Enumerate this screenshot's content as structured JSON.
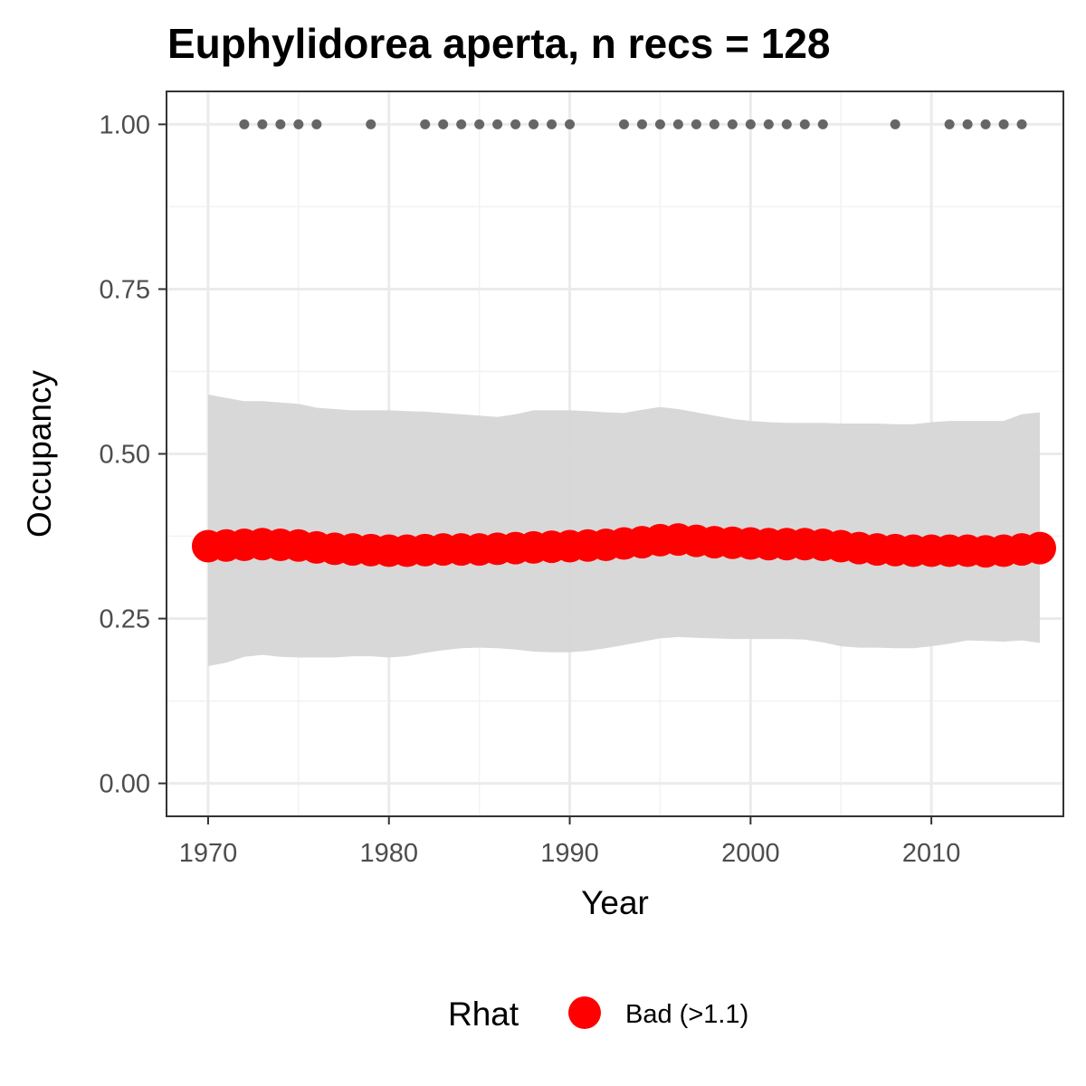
{
  "chart_data": {
    "type": "scatter",
    "title": "Euphylidorea aperta, n recs = 128",
    "xlabel": "Year",
    "ylabel": "Occupancy",
    "xlim": [
      1967.7,
      2017.3
    ],
    "ylim": [
      -0.05,
      1.05
    ],
    "x_ticks": [
      1970,
      1980,
      1990,
      2000,
      2010
    ],
    "y_ticks": [
      0.0,
      0.25,
      0.5,
      0.75,
      1.0
    ],
    "y_tick_labels": [
      "0.00",
      "0.25",
      "0.50",
      "0.75",
      "1.00"
    ],
    "grid": true,
    "legend": {
      "title": "Rhat",
      "position": "bottom",
      "entries": [
        {
          "label": "Bad (>1.1)",
          "color": "#ff0000"
        }
      ]
    },
    "colors": {
      "estimate": "#ff0000",
      "ribbon": "#d6d6d6",
      "records": "#666666"
    },
    "series": [
      {
        "name": "Bad (>1.1)",
        "kind": "points",
        "x": [
          1970,
          1971,
          1972,
          1973,
          1974,
          1975,
          1976,
          1977,
          1978,
          1979,
          1980,
          1981,
          1982,
          1983,
          1984,
          1985,
          1986,
          1987,
          1988,
          1989,
          1990,
          1991,
          1992,
          1993,
          1994,
          1995,
          1996,
          1997,
          1998,
          1999,
          2000,
          2001,
          2002,
          2003,
          2004,
          2005,
          2006,
          2007,
          2008,
          2009,
          2010,
          2011,
          2012,
          2013,
          2014,
          2015,
          2016
        ],
        "y": [
          0.36,
          0.361,
          0.362,
          0.363,
          0.362,
          0.361,
          0.358,
          0.356,
          0.355,
          0.354,
          0.353,
          0.353,
          0.354,
          0.355,
          0.355,
          0.355,
          0.356,
          0.357,
          0.358,
          0.359,
          0.36,
          0.361,
          0.362,
          0.364,
          0.366,
          0.369,
          0.37,
          0.368,
          0.366,
          0.365,
          0.364,
          0.363,
          0.363,
          0.363,
          0.362,
          0.36,
          0.357,
          0.355,
          0.354,
          0.353,
          0.353,
          0.353,
          0.353,
          0.352,
          0.353,
          0.355,
          0.357
        ]
      },
      {
        "name": "",
        "kind": "ribbon",
        "x": [
          1970,
          1971,
          1972,
          1973,
          1974,
          1975,
          1976,
          1977,
          1978,
          1979,
          1980,
          1981,
          1982,
          1983,
          1984,
          1985,
          1986,
          1987,
          1988,
          1989,
          1990,
          1991,
          1992,
          1993,
          1994,
          1995,
          1996,
          1997,
          1998,
          1999,
          2000,
          2001,
          2002,
          2003,
          2004,
          2005,
          2006,
          2007,
          2008,
          2009,
          2010,
          2011,
          2012,
          2013,
          2014,
          2015,
          2016
        ],
        "lower": [
          0.178,
          0.183,
          0.192,
          0.195,
          0.192,
          0.191,
          0.191,
          0.191,
          0.193,
          0.193,
          0.191,
          0.193,
          0.198,
          0.202,
          0.205,
          0.206,
          0.205,
          0.203,
          0.2,
          0.199,
          0.199,
          0.201,
          0.205,
          0.21,
          0.215,
          0.22,
          0.222,
          0.221,
          0.22,
          0.219,
          0.219,
          0.219,
          0.219,
          0.218,
          0.214,
          0.208,
          0.206,
          0.206,
          0.205,
          0.205,
          0.208,
          0.212,
          0.217,
          0.216,
          0.215,
          0.217,
          0.213
        ],
        "upper": [
          0.59,
          0.585,
          0.58,
          0.58,
          0.578,
          0.576,
          0.57,
          0.568,
          0.566,
          0.566,
          0.566,
          0.565,
          0.564,
          0.562,
          0.56,
          0.558,
          0.556,
          0.56,
          0.566,
          0.566,
          0.566,
          0.565,
          0.563,
          0.562,
          0.567,
          0.571,
          0.568,
          0.563,
          0.558,
          0.553,
          0.55,
          0.548,
          0.547,
          0.547,
          0.547,
          0.546,
          0.546,
          0.546,
          0.545,
          0.545,
          0.548,
          0.55,
          0.55,
          0.55,
          0.55,
          0.56,
          0.563
        ]
      },
      {
        "name": "",
        "kind": "records",
        "x": [
          1972,
          1973,
          1974,
          1975,
          1976,
          1979,
          1982,
          1983,
          1984,
          1985,
          1986,
          1987,
          1988,
          1989,
          1990,
          1993,
          1994,
          1995,
          1996,
          1997,
          1998,
          1999,
          2000,
          2001,
          2002,
          2003,
          2004,
          2008,
          2011,
          2012,
          2013,
          2014,
          2015
        ],
        "y": [
          1,
          1,
          1,
          1,
          1,
          1,
          1,
          1,
          1,
          1,
          1,
          1,
          1,
          1,
          1,
          1,
          1,
          1,
          1,
          1,
          1,
          1,
          1,
          1,
          1,
          1,
          1,
          1,
          1,
          1,
          1,
          1,
          1
        ]
      }
    ]
  }
}
